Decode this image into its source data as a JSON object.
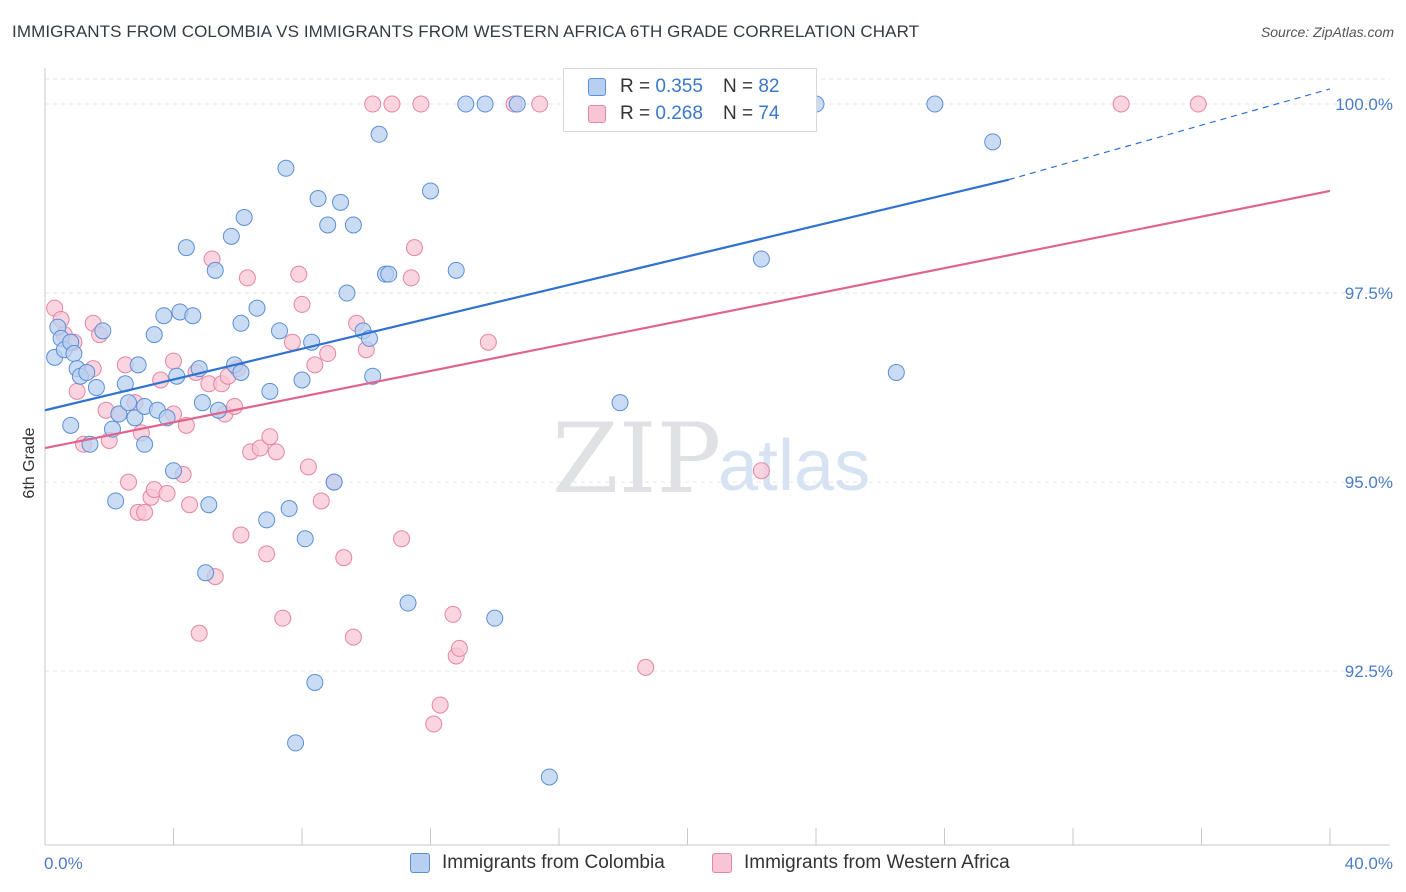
{
  "header": {
    "title": "IMMIGRANTS FROM COLOMBIA VS IMMIGRANTS FROM WESTERN AFRICA 6TH GRADE CORRELATION CHART",
    "source": "Source: ZipAtlas.com"
  },
  "watermark": {
    "zip": "ZIP",
    "atlas": "atlas"
  },
  "legend": {
    "rows": [
      {
        "r_label": "R =",
        "r_value": "0.355",
        "n_label": "N =",
        "n_value": "82"
      },
      {
        "r_label": "R =",
        "r_value": "0.268",
        "n_label": "N =",
        "n_value": "74"
      }
    ]
  },
  "colors": {
    "blue_fill": "#b8d0f0",
    "blue_stroke": "#5b8fd6",
    "blue_line": "#2f72d0",
    "pink_fill": "#f8c5d4",
    "pink_stroke": "#e486a4",
    "pink_line": "#e0648d",
    "tick_text": "#4a7cc7",
    "grid": "#e6e6e6"
  },
  "chart_data": {
    "type": "scatter",
    "title": "IMMIGRANTS FROM COLOMBIA VS IMMIGRANTS FROM WESTERN AFRICA 6TH GRADE CORRELATION CHART",
    "xlabel": "",
    "ylabel": "6th Grade",
    "xlim": [
      0,
      40
    ],
    "ylim": [
      90.2,
      100.45
    ],
    "x_tick_labels": [
      "0.0%",
      "40.0%"
    ],
    "y_ticks": [
      92.5,
      95.0,
      97.5,
      100.0
    ],
    "y_tick_labels": [
      "92.5%",
      "95.0%",
      "97.5%",
      "100.0%"
    ],
    "grid": true,
    "legend_position": "top-center",
    "series": [
      {
        "name": "Immigrants from Colombia",
        "color": "#5b8fd6",
        "r": "0.355",
        "n": "82",
        "trend": {
          "x0": 0,
          "y0": 95.95,
          "x1": 30.0,
          "y1": 99.0,
          "dash_to_x": 40.0,
          "dash_to_y": 100.2
        },
        "points": [
          [
            0.3,
            96.65
          ],
          [
            0.4,
            97.05
          ],
          [
            0.5,
            96.9
          ],
          [
            0.6,
            96.75
          ],
          [
            0.8,
            96.85
          ],
          [
            0.9,
            96.7
          ],
          [
            0.8,
            95.75
          ],
          [
            1.0,
            96.5
          ],
          [
            1.1,
            96.4
          ],
          [
            1.3,
            96.45
          ],
          [
            1.4,
            95.5
          ],
          [
            1.6,
            96.25
          ],
          [
            1.8,
            97.0
          ],
          [
            2.1,
            95.7
          ],
          [
            2.2,
            94.75
          ],
          [
            2.3,
            95.9
          ],
          [
            2.5,
            96.3
          ],
          [
            2.6,
            96.05
          ],
          [
            2.8,
            95.85
          ],
          [
            2.9,
            96.55
          ],
          [
            3.1,
            96.0
          ],
          [
            3.1,
            95.5
          ],
          [
            3.4,
            96.95
          ],
          [
            3.5,
            95.95
          ],
          [
            3.7,
            97.2
          ],
          [
            3.8,
            95.85
          ],
          [
            4.0,
            95.15
          ],
          [
            4.1,
            96.4
          ],
          [
            4.2,
            97.25
          ],
          [
            4.4,
            98.1
          ],
          [
            4.6,
            97.2
          ],
          [
            4.8,
            96.5
          ],
          [
            4.9,
            96.05
          ],
          [
            5.1,
            94.7
          ],
          [
            5.0,
            93.8
          ],
          [
            5.3,
            97.8
          ],
          [
            5.4,
            95.95
          ],
          [
            5.8,
            98.25
          ],
          [
            5.9,
            96.55
          ],
          [
            6.1,
            96.45
          ],
          [
            6.1,
            97.1
          ],
          [
            6.2,
            98.5
          ],
          [
            6.6,
            97.3
          ],
          [
            6.9,
            94.5
          ],
          [
            7.0,
            96.2
          ],
          [
            7.3,
            97.0
          ],
          [
            7.5,
            99.15
          ],
          [
            7.6,
            94.65
          ],
          [
            7.8,
            91.55
          ],
          [
            8.0,
            96.35
          ],
          [
            8.1,
            94.25
          ],
          [
            8.3,
            96.85
          ],
          [
            8.5,
            98.75
          ],
          [
            8.4,
            92.35
          ],
          [
            8.8,
            98.4
          ],
          [
            9.0,
            95.0
          ],
          [
            9.2,
            98.7
          ],
          [
            9.4,
            97.5
          ],
          [
            9.6,
            98.4
          ],
          [
            9.9,
            97.0
          ],
          [
            10.1,
            96.9
          ],
          [
            10.2,
            96.4
          ],
          [
            10.4,
            99.6
          ],
          [
            10.6,
            97.75
          ],
          [
            10.7,
            97.75
          ],
          [
            11.3,
            93.4
          ],
          [
            12.0,
            98.85
          ],
          [
            12.8,
            97.8
          ],
          [
            13.1,
            100.0
          ],
          [
            13.7,
            100.0
          ],
          [
            14.0,
            93.2
          ],
          [
            14.7,
            100.0
          ],
          [
            15.7,
            91.1
          ],
          [
            16.4,
            100.0
          ],
          [
            17.2,
            100.0
          ],
          [
            17.9,
            96.05
          ],
          [
            18.8,
            100.0
          ],
          [
            22.3,
            97.95
          ],
          [
            24.0,
            100.0
          ],
          [
            26.5,
            96.45
          ],
          [
            27.7,
            100.0
          ],
          [
            29.5,
            99.5
          ]
        ]
      },
      {
        "name": "Immigrants from Western Africa",
        "color": "#e486a4",
        "r": "0.268",
        "n": "74",
        "trend": {
          "x0": 0,
          "y0": 95.45,
          "x1": 40.0,
          "y1": 98.85
        },
        "points": [
          [
            0.3,
            97.3
          ],
          [
            0.5,
            97.15
          ],
          [
            0.6,
            96.95
          ],
          [
            0.9,
            96.85
          ],
          [
            1.0,
            96.2
          ],
          [
            1.2,
            95.5
          ],
          [
            1.5,
            96.5
          ],
          [
            1.5,
            97.1
          ],
          [
            1.7,
            96.95
          ],
          [
            1.9,
            95.95
          ],
          [
            2.0,
            95.55
          ],
          [
            2.3,
            95.9
          ],
          [
            2.5,
            96.55
          ],
          [
            2.6,
            95.0
          ],
          [
            2.8,
            96.05
          ],
          [
            2.9,
            94.6
          ],
          [
            3.0,
            95.65
          ],
          [
            3.1,
            94.6
          ],
          [
            3.3,
            94.8
          ],
          [
            3.4,
            94.9
          ],
          [
            3.6,
            96.35
          ],
          [
            3.8,
            94.85
          ],
          [
            4.0,
            95.9
          ],
          [
            4.0,
            96.6
          ],
          [
            4.3,
            95.1
          ],
          [
            4.4,
            95.75
          ],
          [
            4.5,
            94.7
          ],
          [
            4.7,
            96.45
          ],
          [
            4.8,
            93.0
          ],
          [
            5.1,
            96.3
          ],
          [
            5.2,
            97.95
          ],
          [
            5.3,
            93.75
          ],
          [
            5.5,
            96.3
          ],
          [
            5.6,
            95.9
          ],
          [
            5.7,
            96.4
          ],
          [
            5.9,
            96.0
          ],
          [
            6.0,
            96.5
          ],
          [
            6.1,
            94.3
          ],
          [
            6.3,
            97.7
          ],
          [
            6.4,
            95.4
          ],
          [
            6.7,
            95.45
          ],
          [
            6.9,
            94.05
          ],
          [
            7.0,
            95.6
          ],
          [
            7.2,
            95.4
          ],
          [
            7.4,
            93.2
          ],
          [
            7.7,
            96.85
          ],
          [
            7.9,
            97.75
          ],
          [
            8.0,
            97.35
          ],
          [
            8.2,
            95.2
          ],
          [
            8.4,
            96.55
          ],
          [
            8.6,
            94.75
          ],
          [
            8.8,
            96.7
          ],
          [
            9.0,
            95.0
          ],
          [
            9.3,
            94.0
          ],
          [
            9.6,
            92.95
          ],
          [
            9.7,
            97.1
          ],
          [
            10.0,
            96.75
          ],
          [
            10.2,
            100.0
          ],
          [
            10.8,
            100.0
          ],
          [
            11.1,
            94.25
          ],
          [
            11.4,
            97.7
          ],
          [
            11.5,
            98.1
          ],
          [
            11.7,
            100.0
          ],
          [
            12.1,
            91.8
          ],
          [
            12.3,
            92.05
          ],
          [
            12.7,
            93.25
          ],
          [
            12.8,
            92.7
          ],
          [
            12.9,
            92.8
          ],
          [
            13.8,
            96.85
          ],
          [
            14.6,
            100.0
          ],
          [
            15.4,
            100.0
          ],
          [
            18.7,
            92.55
          ],
          [
            22.3,
            95.15
          ],
          [
            33.5,
            100.0
          ],
          [
            35.9,
            100.0
          ]
        ]
      }
    ]
  },
  "bottom_legend": {
    "items": [
      {
        "label": "Immigrants from Colombia"
      },
      {
        "label": "Immigrants from Western Africa"
      }
    ]
  }
}
